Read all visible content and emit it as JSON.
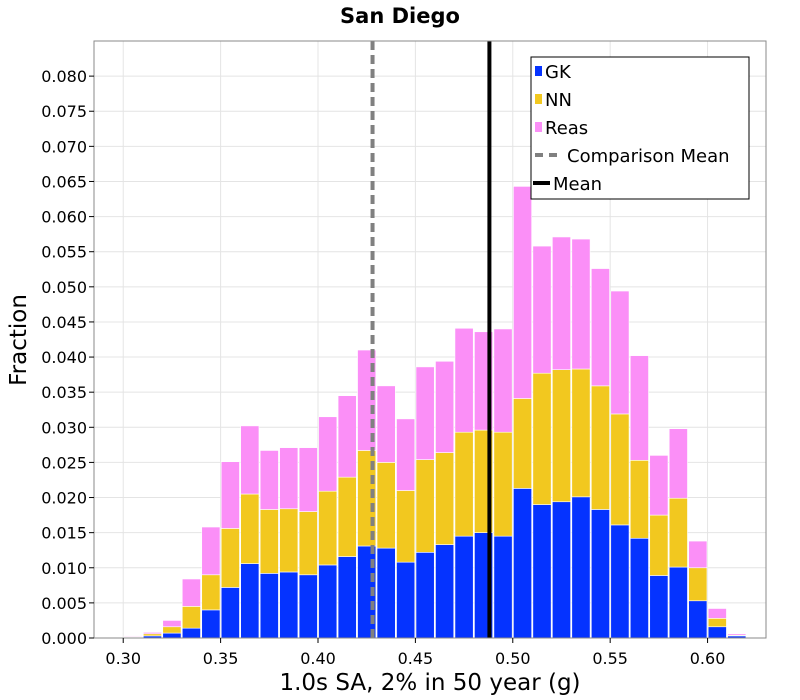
{
  "chart_data": {
    "type": "bar",
    "title": "San Diego",
    "xlabel": "1.0s SA, 2% in 50 year (g)",
    "ylabel": "Fraction",
    "xlim": [
      0.285,
      0.63
    ],
    "ylim": [
      0.0,
      0.085
    ],
    "xticks": [
      "0.30",
      "0.35",
      "0.40",
      "0.45",
      "0.50",
      "0.55",
      "0.60"
    ],
    "xtick_values": [
      0.3,
      0.35,
      0.4,
      0.45,
      0.5,
      0.55,
      0.6
    ],
    "yticks": [
      "0.000",
      "0.005",
      "0.010",
      "0.015",
      "0.020",
      "0.025",
      "0.030",
      "0.035",
      "0.040",
      "0.045",
      "0.050",
      "0.055",
      "0.060",
      "0.065",
      "0.070",
      "0.075",
      "0.080"
    ],
    "ytick_values": [
      0.0,
      0.005,
      0.01,
      0.015,
      0.02,
      0.025,
      0.03,
      0.035,
      0.04,
      0.045,
      0.05,
      0.055,
      0.06,
      0.065,
      0.07,
      0.075,
      0.08
    ],
    "grid": true,
    "stacked": true,
    "bin_width": 0.01,
    "bin_starts": [
      0.3,
      0.31,
      0.32,
      0.33,
      0.34,
      0.35,
      0.36,
      0.37,
      0.38,
      0.39,
      0.4,
      0.41,
      0.42,
      0.43,
      0.44,
      0.45,
      0.46,
      0.47,
      0.48,
      0.49,
      0.5,
      0.51,
      0.52,
      0.53,
      0.54,
      0.55,
      0.56,
      0.57,
      0.58,
      0.59,
      0.6,
      0.61
    ],
    "series": [
      {
        "name": "GK",
        "color": "#0533ff",
        "values": [
          0.0001,
          0.0003,
          0.0007,
          0.0014,
          0.004,
          0.0072,
          0.0106,
          0.0092,
          0.0094,
          0.009,
          0.0104,
          0.0116,
          0.0131,
          0.0128,
          0.0108,
          0.0122,
          0.0133,
          0.0145,
          0.015,
          0.0145,
          0.0213,
          0.019,
          0.0194,
          0.0201,
          0.0183,
          0.0161,
          0.0142,
          0.0089,
          0.0101,
          0.0053,
          0.0016,
          0.0003
        ]
      },
      {
        "name": "NN",
        "color": "#f2c81f",
        "values": [
          0.0001,
          0.0003,
          0.0009,
          0.0031,
          0.005,
          0.0084,
          0.0099,
          0.0091,
          0.009,
          0.009,
          0.0105,
          0.0113,
          0.0136,
          0.0122,
          0.0102,
          0.0132,
          0.0131,
          0.0148,
          0.0146,
          0.0148,
          0.0128,
          0.0187,
          0.0188,
          0.0182,
          0.0176,
          0.0158,
          0.0111,
          0.0086,
          0.0098,
          0.0047,
          0.0012,
          0.0001
        ]
      },
      {
        "name": "Reas",
        "color": "#fb8ff7",
        "values": [
          0.0001,
          0.0002,
          0.0009,
          0.0039,
          0.0068,
          0.0095,
          0.0097,
          0.0084,
          0.0087,
          0.0091,
          0.0106,
          0.0116,
          0.0143,
          0.0109,
          0.0102,
          0.0132,
          0.013,
          0.0148,
          0.014,
          0.0147,
          0.0302,
          0.0181,
          0.0189,
          0.0185,
          0.0167,
          0.0175,
          0.0149,
          0.0085,
          0.0099,
          0.0038,
          0.0014,
          0.0002
        ]
      }
    ],
    "lines": [
      {
        "name": "Comparison Mean",
        "x": 0.428,
        "color": "#808080",
        "style": "dashed"
      },
      {
        "name": "Mean",
        "x": 0.488,
        "color": "#000000",
        "style": "solid"
      }
    ],
    "legend": {
      "position": "top-right",
      "entries": [
        "GK",
        "NN",
        "Reas",
        "Comparison Mean",
        "Mean"
      ]
    }
  }
}
